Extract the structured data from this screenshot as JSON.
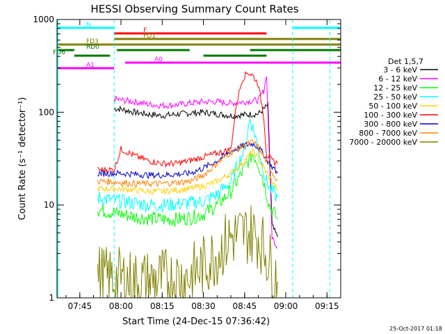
{
  "chart_data": {
    "type": "line",
    "title": "HESSI Observing Summary Count Rates",
    "xlabel": "Start Time (24-Dec-15 07:36:42)",
    "ylabel": "Count Rate (s⁻¹ detector⁻¹)",
    "xlim": [
      "07:36:42",
      "09:20:00"
    ],
    "ylim": [
      1,
      1000
    ],
    "y_scale": "log",
    "x_ticks": [
      "07:45",
      "08:00",
      "08:15",
      "08:30",
      "08:45",
      "09:00",
      "09:15"
    ],
    "y_ticks": [
      "1",
      "10",
      "100",
      "1000"
    ],
    "legend_title": "Det 1,5,7",
    "legend_position": "right",
    "footer_date": "25-Oct-2017 01:18",
    "flags": [
      {
        "label": "N",
        "color": "#00ffff",
        "segments": [
          [
            "07:36:42",
            "07:57:30"
          ],
          [
            "09:02:30",
            "09:20:00"
          ]
        ]
      },
      {
        "label": "F",
        "color": "#ff0000",
        "segments": [
          [
            "07:57:30",
            "08:53:00"
          ]
        ]
      },
      {
        "label": "FD1",
        "color": "#808000",
        "segments": [
          [
            "07:57:30",
            "09:20:00"
          ]
        ]
      },
      {
        "label": "FD3",
        "color": "#808000",
        "segments": [
          [
            "07:36:42",
            "09:20:00"
          ]
        ]
      },
      {
        "label": "RD0",
        "color": "#007700",
        "segments": [
          [
            "07:36:42",
            "07:43:00"
          ],
          [
            "07:58:30",
            "08:25:00"
          ],
          [
            "08:47:00",
            "09:20:00"
          ]
        ]
      },
      {
        "label": "FD6",
        "color": "#007700",
        "segments": [
          [
            "07:43:00",
            "07:56:00"
          ],
          [
            "08:30:00",
            "08:53:00"
          ]
        ]
      },
      {
        "label": "A0",
        "color": "#ff00ff",
        "segments": [
          [
            "08:01:30",
            "09:20:00"
          ]
        ]
      },
      {
        "label": "A1",
        "color": "#ff00ff",
        "segments": [
          [
            "07:36:42",
            "07:57:30"
          ]
        ]
      }
    ],
    "series": [
      {
        "name": "3 - 6 keV",
        "color": "#000000",
        "x": [
          "07:57:30",
          "08:00",
          "08:05",
          "08:10",
          "08:15",
          "08:20",
          "08:25",
          "08:30",
          "08:35",
          "08:40",
          "08:45",
          "08:50",
          "08:52",
          "08:53:30",
          "08:55",
          "08:57"
        ],
        "values": [
          110,
          108,
          100,
          95,
          92,
          95,
          98,
          100,
          96,
          92,
          94,
          96,
          108,
          120,
          6,
          4.5
        ]
      },
      {
        "name": "6 - 12 keV",
        "color": "#ff00ff",
        "x": [
          "07:57:30",
          "08:00",
          "08:05",
          "08:10",
          "08:15",
          "08:20",
          "08:25",
          "08:30",
          "08:35",
          "08:40",
          "08:45",
          "08:50",
          "08:52",
          "08:53",
          "08:54",
          "08:55",
          "08:57"
        ],
        "values": [
          140,
          135,
          130,
          122,
          118,
          120,
          125,
          130,
          130,
          125,
          130,
          135,
          170,
          260,
          35,
          4.5,
          3.5
        ]
      },
      {
        "name": "12 - 25 keV",
        "color": "#00ff00",
        "x": [
          "07:51:30",
          "07:55",
          "08:00",
          "08:05",
          "08:10",
          "08:15",
          "08:20",
          "08:25",
          "08:30",
          "08:35",
          "08:40",
          "08:45",
          "08:48",
          "08:50",
          "08:52",
          "08:54",
          "08:56",
          "08:57"
        ],
        "values": [
          9,
          8.5,
          8,
          7.5,
          7.2,
          7,
          7,
          7.3,
          8,
          10,
          14,
          25,
          36,
          28,
          18,
          10,
          8,
          7
        ]
      },
      {
        "name": "25 - 50 keV",
        "color": "#00ffff",
        "x": [
          "07:51:30",
          "07:55",
          "08:00",
          "08:05",
          "08:10",
          "08:15",
          "08:20",
          "08:25",
          "08:30",
          "08:35",
          "08:40",
          "08:45",
          "08:47",
          "08:49",
          "08:51",
          "08:53",
          "08:55",
          "08:57"
        ],
        "values": [
          12,
          11.5,
          11,
          10.5,
          10,
          10,
          10.2,
          10.5,
          11,
          13,
          18,
          40,
          85,
          55,
          30,
          18,
          14,
          12
        ]
      },
      {
        "name": "50 - 100 keV",
        "color": "#ffd000",
        "x": [
          "07:51:30",
          "07:55",
          "08:00",
          "08:05",
          "08:10",
          "08:15",
          "08:20",
          "08:25",
          "08:30",
          "08:35",
          "08:40",
          "08:45",
          "08:48",
          "08:50",
          "08:52",
          "08:54",
          "08:56",
          "08:57"
        ],
        "values": [
          15,
          15,
          15,
          14.5,
          14,
          14,
          14.5,
          15,
          16,
          18,
          22,
          30,
          38,
          32,
          25,
          20,
          16,
          15
        ]
      },
      {
        "name": "100 - 300 keV",
        "color": "#ff0000",
        "x": [
          "07:51:30",
          "07:57:30",
          "08:00",
          "08:05",
          "08:10",
          "08:15",
          "08:20",
          "08:25",
          "08:30",
          "08:35",
          "08:40",
          "08:42",
          "08:44",
          "08:46",
          "08:48",
          "08:50",
          "08:52",
          "08:53",
          "08:55",
          "08:57"
        ],
        "values": [
          24,
          24,
          40,
          34,
          30,
          28,
          28,
          30,
          33,
          36,
          40,
          120,
          220,
          270,
          250,
          200,
          90,
          35,
          30,
          28
        ]
      },
      {
        "name": "300 - 800 keV",
        "color": "#0000cc",
        "x": [
          "07:51:30",
          "07:55",
          "08:00",
          "08:05",
          "08:10",
          "08:15",
          "08:20",
          "08:25",
          "08:30",
          "08:35",
          "08:40",
          "08:45",
          "08:48",
          "08:50",
          "08:52",
          "08:54",
          "08:56",
          "08:57"
        ],
        "values": [
          22,
          22,
          22,
          21.5,
          21,
          21,
          21.5,
          22,
          25,
          30,
          38,
          44,
          46,
          42,
          35,
          28,
          24,
          22
        ]
      },
      {
        "name": "800 - 7000 keV",
        "color": "#ff8000",
        "x": [
          "07:51:30",
          "07:55",
          "08:00",
          "08:05",
          "08:10",
          "08:15",
          "08:20",
          "08:25",
          "08:30",
          "08:35",
          "08:40",
          "08:45",
          "08:48",
          "08:50",
          "08:52",
          "08:54",
          "08:56",
          "08:57"
        ],
        "values": [
          18,
          18,
          17.5,
          17,
          17,
          17,
          17.5,
          18,
          21,
          28,
          37,
          44,
          48,
          42,
          33,
          26,
          20,
          19
        ]
      },
      {
        "name": "7000 - 20000 keV",
        "color": "#808000",
        "x": [
          "07:51:30",
          "07:55",
          "08:00",
          "08:05",
          "08:10",
          "08:15",
          "08:20",
          "08:25",
          "08:30",
          "08:35",
          "08:40",
          "08:45",
          "08:48",
          "08:50",
          "08:52",
          "08:54",
          "08:56",
          "08:57"
        ],
        "values": [
          1.8,
          1.6,
          1.6,
          1.5,
          1.5,
          1.6,
          1.6,
          1.7,
          2.2,
          3,
          4.5,
          5,
          5,
          4.5,
          3.5,
          2.5,
          1.8,
          1.5
        ]
      }
    ]
  }
}
